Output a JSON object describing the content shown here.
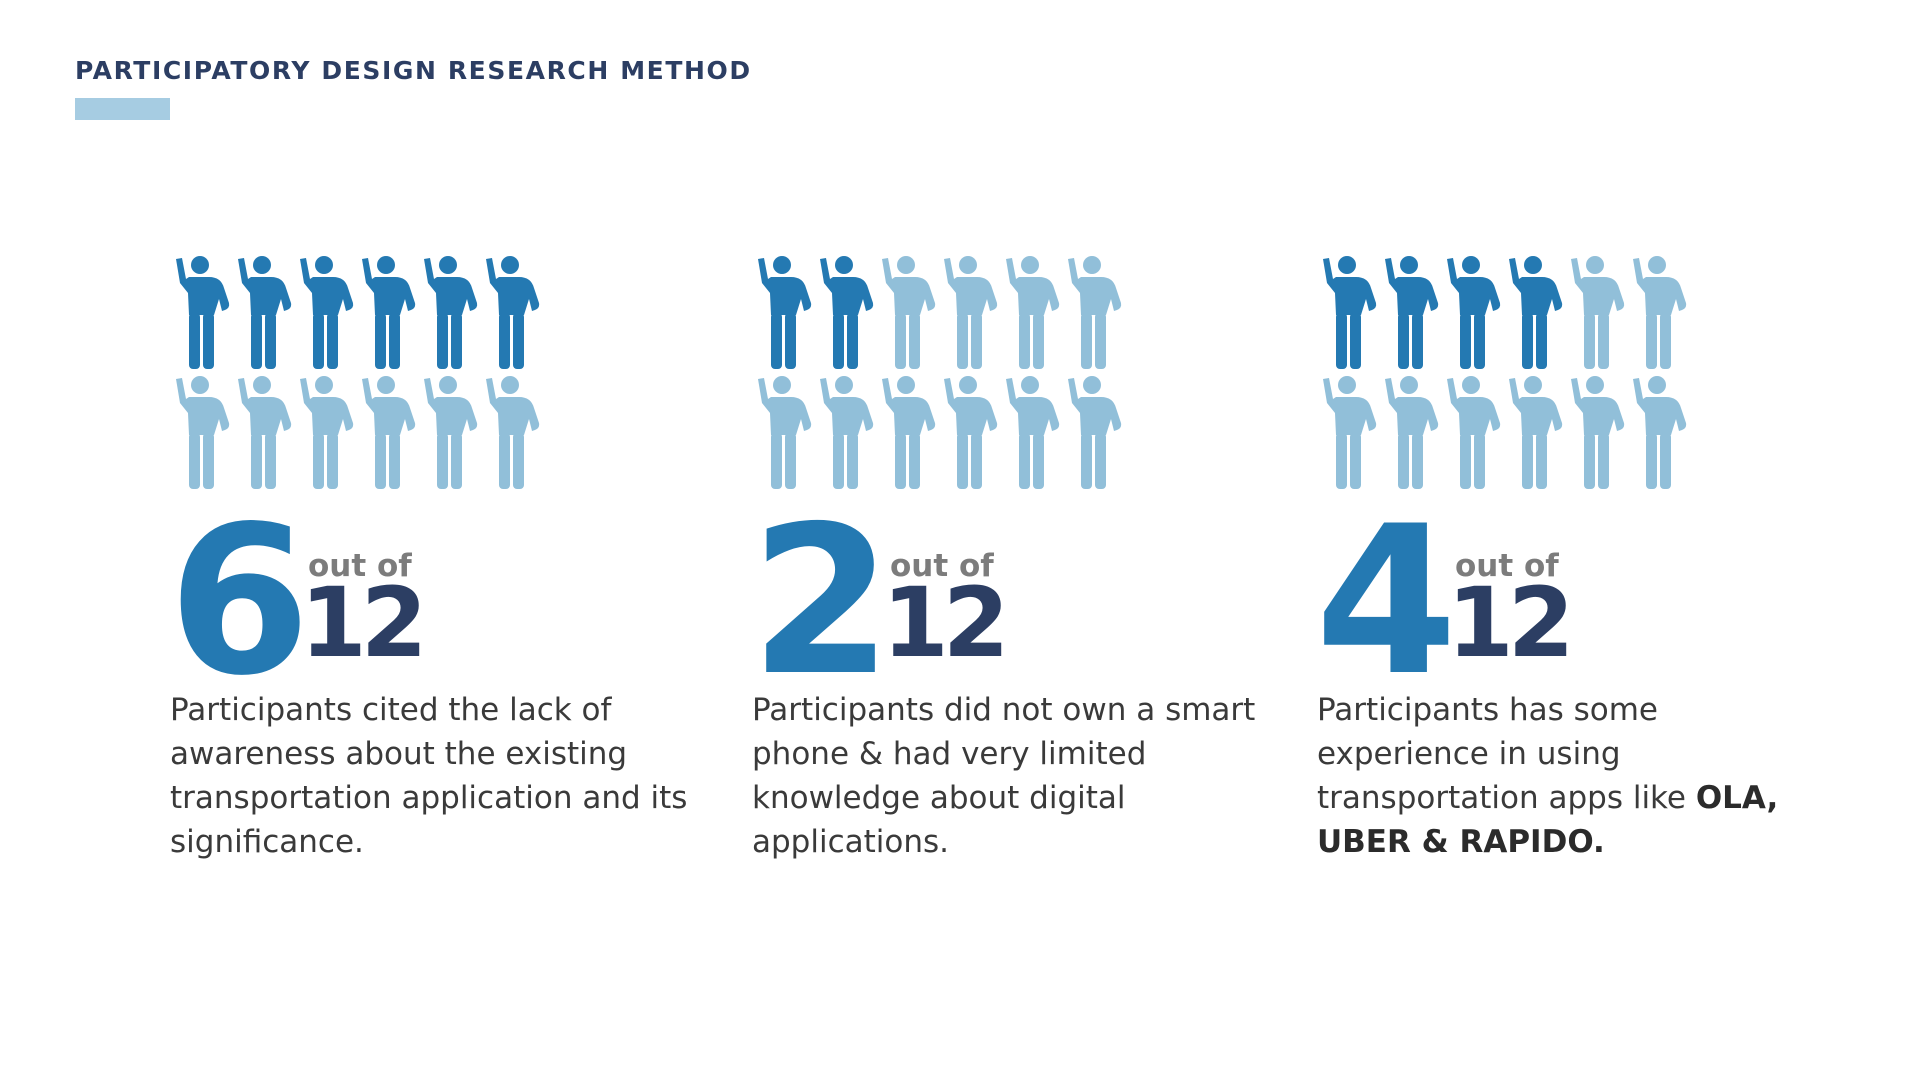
{
  "header": {
    "title": "PARTICIPATORY DESIGN RESEARCH METHOD",
    "accent_color": "#a6cce2"
  },
  "colors": {
    "highlight_person": "#2479b2",
    "muted_person": "#91bfd9",
    "number": "#2479b2",
    "total": "#2c3e63",
    "out_of": "#7c7c7c"
  },
  "icon": "person-waving-icon",
  "chart_data": [
    {
      "type": "pictogram",
      "value": 6,
      "total": 12,
      "big_number": "6",
      "out_of_label": "out of",
      "total_label": "12",
      "description": [
        {
          "text": "Participants cited the lack of awareness about the existing transportation application and its significance.",
          "bold": false
        }
      ]
    },
    {
      "type": "pictogram",
      "value": 2,
      "total": 12,
      "big_number": "2",
      "out_of_label": "out of",
      "total_label": "12",
      "description": [
        {
          "text": "Participants did not own a smart phone & had very limited knowledge about digital applications.",
          "bold": false
        }
      ]
    },
    {
      "type": "pictogram",
      "value": 4,
      "total": 12,
      "big_number": "4",
      "out_of_label": "out of",
      "total_label": "12",
      "description": [
        {
          "text": "Participants has some experience in using transportation apps like ",
          "bold": false
        },
        {
          "text": "OLA, UBER & RAPIDO.",
          "bold": true
        }
      ]
    }
  ]
}
